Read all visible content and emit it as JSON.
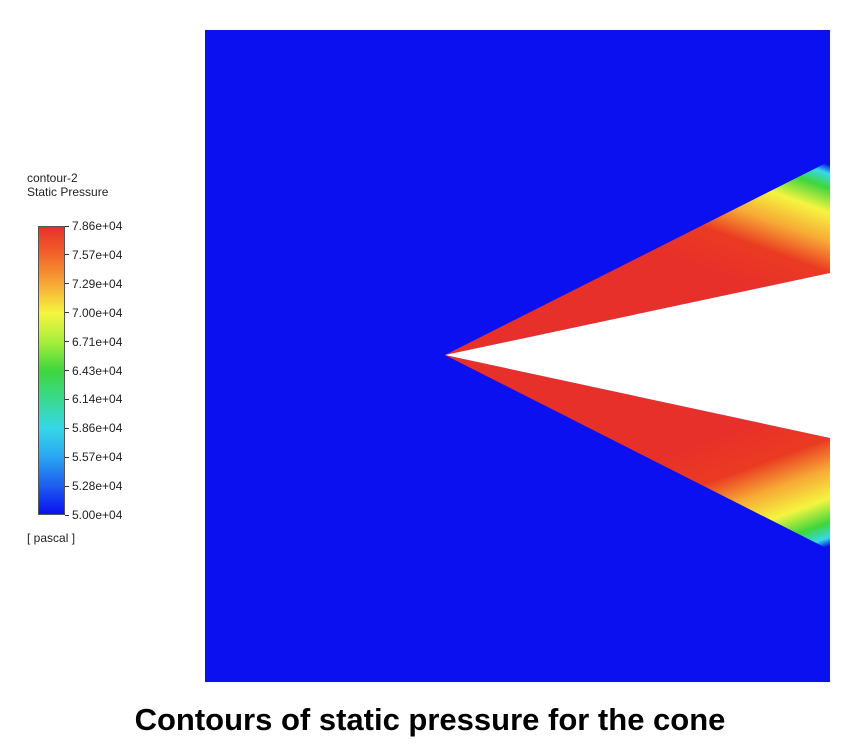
{
  "legend": {
    "title_line1": "contour-2",
    "title_line2": "Static Pressure",
    "unit": "[ pascal ]",
    "ticks": [
      "7.86e+04",
      "7.57e+04",
      "7.29e+04",
      "7.00e+04",
      "6.71e+04",
      "6.43e+04",
      "6.14e+04",
      "5.86e+04",
      "5.57e+04",
      "5.28e+04",
      "5.00e+04"
    ],
    "colormap": [
      "#e8302a",
      "#f2662a",
      "#f7a935",
      "#f5f540",
      "#a8ee3c",
      "#3fd63c",
      "#39d98f",
      "#36d8e8",
      "#2aa6f2",
      "#1e5ef0",
      "#0a10f0"
    ]
  },
  "plot": {
    "background_color": "#0a10f0",
    "core_color": "#ffffff",
    "shock_high_color": "#ea3b22",
    "shock_low_color": "#45d838"
  },
  "caption": "Contours of static pressure for the cone"
}
